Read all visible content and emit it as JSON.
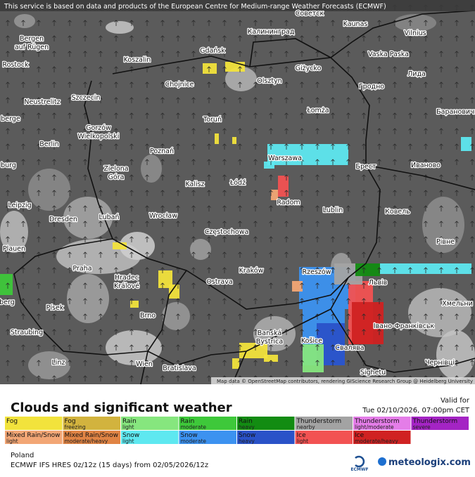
{
  "banner": "This service is based on data and products of the European Centre for Medium-range Weather Forecasts (ECMWF)",
  "attribution": "Map data © OpenStreetMap contributors, rendering GIScience Research Group @ Heidelberg University",
  "cities": [
    [
      "Советск"
    ],
    [
      "Kaunas"
    ],
    [
      "Vilnius"
    ],
    [
      "Bergen",
      "auf Rügen"
    ],
    [
      "Калининград"
    ],
    [
      "Gdańsk"
    ],
    [
      "Vaska Paska"
    ],
    [
      "Rostock"
    ],
    [
      "Koszalin"
    ],
    [
      "Giżycko"
    ],
    [
      "Лида"
    ],
    [
      "Chojnice"
    ],
    [
      "Olsztyn"
    ],
    [
      "Гродно"
    ],
    [
      "Szczecin"
    ],
    [
      "Neustrelitz"
    ],
    [
      "Łomża"
    ],
    [
      "Барановичи"
    ],
    [
      "berge"
    ],
    [
      "Toruń"
    ],
    [
      "Gorzów",
      "Wielkopolski"
    ],
    [
      "Berlin"
    ],
    [
      "Poznań"
    ],
    [
      "Warszawa"
    ],
    [
      "Брест"
    ],
    [
      "Иваново"
    ],
    [
      "burg"
    ],
    [
      "Zielona",
      "Góra"
    ],
    [
      "Kalisz"
    ],
    [
      "Łódź"
    ],
    [
      "Leipzig"
    ],
    [
      "Radom"
    ],
    [
      "Lublin"
    ],
    [
      "Ковель"
    ],
    [
      "Dresden"
    ],
    [
      "Lubań"
    ],
    [
      "Wrocław"
    ],
    [
      "Częstochowa"
    ],
    [
      "Рівне"
    ],
    [
      "Plauen"
    ],
    [
      "Hradec",
      "Králové"
    ],
    [
      "Praha"
    ],
    [
      "Kraków"
    ],
    [
      "Rzeszów"
    ],
    [
      "Львів"
    ],
    [
      "Ostrava"
    ],
    [
      "berg"
    ],
    [
      "Хмельни"
    ],
    [
      "Písek"
    ],
    [
      "Brno"
    ],
    [
      "Straubing"
    ],
    [
      "Banská",
      "Bystrica"
    ],
    [
      "Košice"
    ],
    [
      "Свалява"
    ],
    [
      "Івано-Франківськ"
    ],
    [
      "Sighetu"
    ],
    [
      "Чернівці"
    ],
    [
      "Linz"
    ],
    [
      "Wien"
    ],
    [
      "Bratislava"
    ]
  ],
  "title": "Clouds and significant weather",
  "valid_label": "Valid for",
  "valid_time": "Tue 02/10/2026, 07:00pm CET",
  "legend": [
    {
      "name": "Fog",
      "color": "#f2e33c"
    },
    {
      "name": "Fog",
      "sub": "freezing",
      "color": "#d2b33e"
    },
    {
      "name": "Rain",
      "sub": "light",
      "color": "#86e67e"
    },
    {
      "name": "Rain",
      "sub": "moderate",
      "color": "#3ec83a"
    },
    {
      "name": "Rain",
      "sub": "heavy",
      "color": "#128c12"
    },
    {
      "name": "Thunderstorm",
      "sub": "nearby",
      "color": "#a3a3a3"
    },
    {
      "name": "Thunderstorm",
      "sub": "light/moderate",
      "color": "#e47de8"
    },
    {
      "name": "Thunderstorm",
      "sub": "severe",
      "color": "#a424c4"
    },
    {
      "name": "Mixed Rain/Snow",
      "sub": "light",
      "color": "#f2a675"
    },
    {
      "name": "Mixed Rain/Snow",
      "sub": "moderate/heavy",
      "color": "#e08444"
    },
    {
      "name": "Snow",
      "sub": "light",
      "color": "#5ee8f0"
    },
    {
      "name": "Snow",
      "sub": "moderate",
      "color": "#3c92f0"
    },
    {
      "name": "Snow",
      "sub": "heavy",
      "color": "#2a52c8"
    },
    {
      "name": "Ice",
      "sub": "light",
      "color": "#f25252"
    },
    {
      "name": "Ice",
      "sub": "moderate/heavy",
      "color": "#d02222"
    }
  ],
  "region": "Poland",
  "model": "ECMWF IFS HRES 0z/12z (15 days) from  02/05/2026/12z",
  "ecmwf_logo": "ECMWF",
  "brand": "meteologix.com"
}
